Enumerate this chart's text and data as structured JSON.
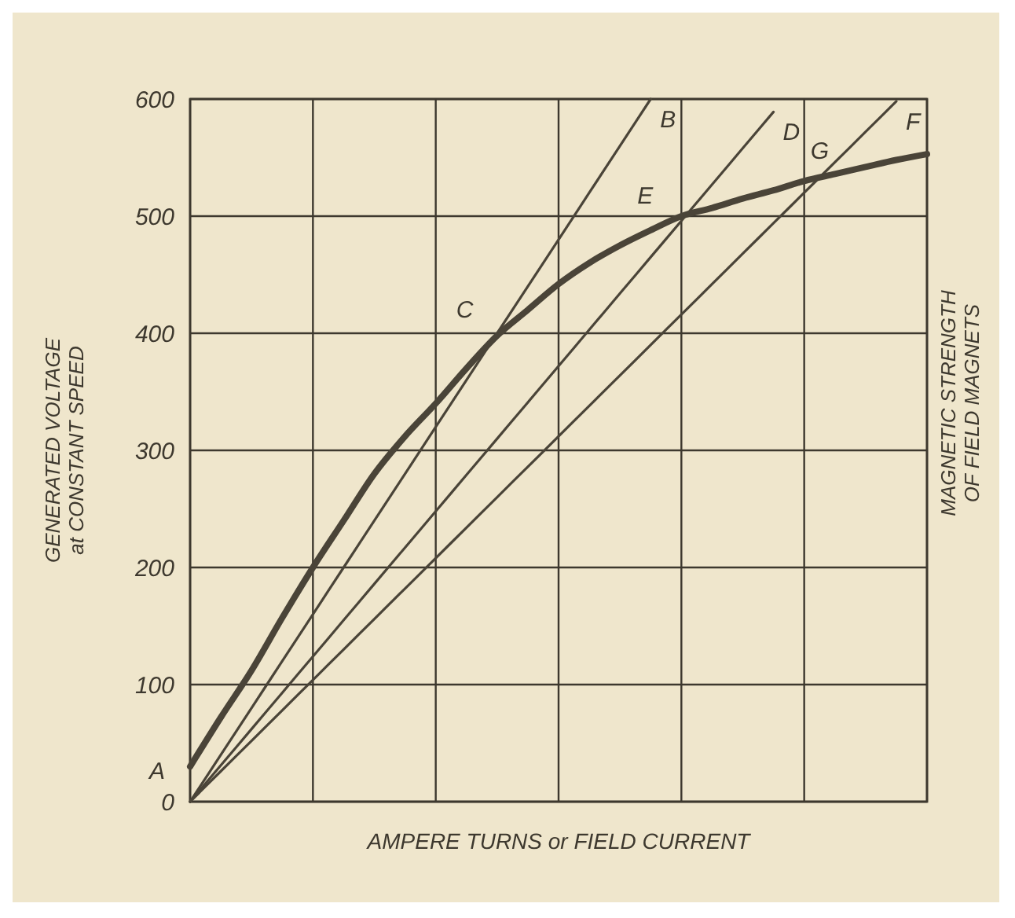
{
  "chart_data": {
    "type": "line",
    "xlabel": "AMPERE TURNS or FIELD CURRENT",
    "ylabel": "GENERATED VOLTAGE\nat CONSTANT SPEED",
    "y2label": "MAGNETIC STRENGTH\nOF FIELD MAGNETS",
    "categories": [
      null,
      null,
      null,
      null,
      null,
      null,
      null,
      null,
      null,
      null,
      null,
      null,
      null,
      null,
      null,
      null,
      null,
      null,
      null,
      null,
      null,
      null,
      null,
      null,
      null
    ],
    "series": [
      {
        "color": "#4a4438",
        "values": [
          30,
          72,
          112,
          157,
          200,
          240,
          280,
          312,
          340,
          370,
          398,
          420,
          442,
          460,
          475,
          488,
          500,
          507,
          515,
          522,
          530,
          536,
          542,
          548,
          553
        ]
      },
      {
        "name": "B",
        "color": "#4a4438",
        "values": [
          0,
          40,
          80,
          120,
          160,
          200,
          240,
          280,
          320,
          360,
          400,
          440,
          480,
          520,
          560,
          600,
          null,
          null,
          null,
          null,
          null,
          null,
          null,
          null,
          null
        ]
      },
      {
        "name": "D",
        "color": "#4a4438",
        "values": [
          0,
          31,
          62,
          93,
          124,
          155,
          186,
          217,
          248,
          279,
          310,
          341,
          372,
          403,
          434,
          465,
          496,
          527,
          558,
          589,
          null,
          null,
          null,
          null,
          null
        ]
      },
      {
        "name": "F",
        "color": "#4a4438",
        "values": [
          0,
          26,
          52,
          78,
          104,
          130,
          156,
          182,
          208,
          234,
          260,
          286,
          312,
          338,
          364,
          390,
          416,
          442,
          468,
          494,
          520,
          546,
          572,
          598,
          null
        ]
      }
    ],
    "ylim": [
      0,
      600
    ],
    "yticks": [
      0,
      100,
      200,
      300,
      400,
      500,
      600
    ],
    "grid": true,
    "tick_labels": "y",
    "annotations": [
      "A",
      "C",
      "E",
      "G"
    ]
  }
}
